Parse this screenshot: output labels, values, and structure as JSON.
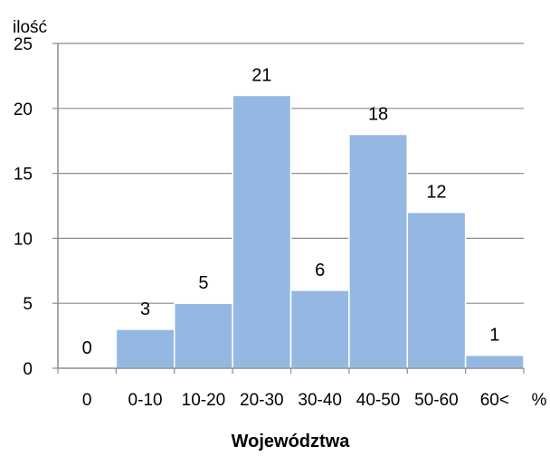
{
  "chart_data": {
    "type": "bar",
    "ylabel": "ilość",
    "xlabel": "Województwa",
    "x_unit": "%",
    "categories": [
      "0",
      "0-10",
      "10-20",
      "20-30",
      "30-40",
      "40-50",
      "50-60",
      "60<"
    ],
    "values": [
      0,
      3,
      5,
      21,
      6,
      18,
      12,
      1
    ],
    "ylim": [
      0,
      25
    ],
    "yticks": [
      "0",
      "5",
      "10",
      "15",
      "20",
      "25"
    ],
    "data_labels": [
      "0",
      "3",
      "5",
      "21",
      "6",
      "18",
      "12",
      "1"
    ],
    "grid": true,
    "legend": "none",
    "colors": {
      "bar": "#95b8e3",
      "bar_edge": "#ffffff",
      "grid": "#8c8c8c",
      "axis": "#8c8c8c"
    }
  }
}
